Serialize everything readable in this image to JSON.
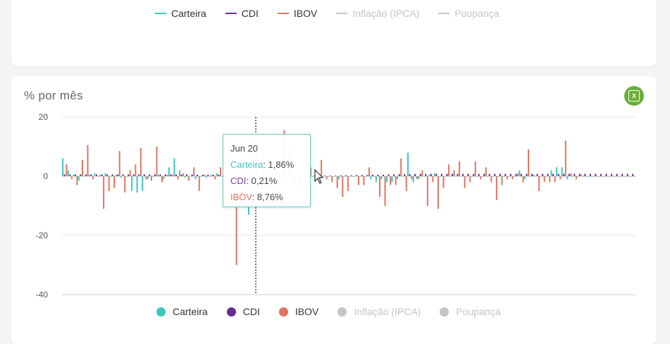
{
  "legend": {
    "items": [
      {
        "label": "Carteira",
        "color": "#3cc6bb",
        "active": true
      },
      {
        "label": "CDI",
        "color": "#6a2c91",
        "active": true
      },
      {
        "label": "IBOV",
        "color": "#e2735e",
        "active": true
      },
      {
        "label": "Inflação (IPCA)",
        "color": "#c4c4c4",
        "active": false
      },
      {
        "label": "Poupança",
        "color": "#c4c4c4",
        "active": false
      }
    ]
  },
  "chart_title": "% por mês",
  "excel_button_icon": "excel-icon",
  "tooltip": {
    "date": "Jun 20",
    "rows": [
      {
        "name": "Carteira",
        "value": ": 1,86%"
      },
      {
        "name": "CDI",
        "value": ": 0,21%"
      },
      {
        "name": "IBOV",
        "value": ": 8,76%"
      }
    ]
  },
  "chart_data": {
    "type": "bar",
    "title": "% por mês",
    "xlabel": "",
    "ylabel": "",
    "y_tick_labels": [
      "20",
      "0",
      "-20",
      "-40"
    ],
    "yticks": [
      20,
      0,
      -20,
      -40
    ],
    "ylim": [
      -40,
      20
    ],
    "grid": "horizontal",
    "legend_position": "bottom",
    "highlighted_point": {
      "label": "Jun 20",
      "index": 36
    },
    "series": [
      {
        "name": "Carteira",
        "color": "#3cc6bb",
        "values": [
          6,
          2,
          0.5,
          -1.5,
          0,
          0.5,
          1,
          0.5,
          1,
          0,
          0.5,
          -0.5,
          0,
          -5,
          -5.5,
          -5,
          -1,
          0,
          0.5,
          -1,
          3,
          6,
          2,
          -0.5,
          0,
          -1,
          0,
          -0.5,
          0.5,
          1,
          0,
          0,
          0,
          0,
          0.5,
          -13,
          1.86,
          -5,
          1,
          0.5,
          0,
          0,
          0,
          0,
          0,
          0,
          0,
          0,
          0,
          0,
          0,
          0,
          -1,
          0,
          0,
          0,
          0,
          0,
          -1,
          -2,
          -1,
          -2,
          -2,
          -1,
          0,
          8,
          -2,
          -1,
          0,
          0.5,
          1,
          0,
          0,
          0,
          0,
          0,
          0,
          0,
          0,
          0,
          0,
          0,
          0,
          0,
          0,
          0,
          2,
          -1,
          0,
          0,
          0,
          0,
          2,
          3,
          3,
          -1,
          0,
          0,
          0,
          0,
          0,
          0,
          0,
          0,
          0,
          0,
          0,
          0
        ]
      },
      {
        "name": "CDI",
        "color": "#6a2c91",
        "values": [
          0.6,
          0.6,
          0.6,
          0.6,
          0.6,
          0.6,
          0.6,
          0.6,
          0.6,
          0.6,
          0.6,
          0.6,
          0.6,
          0.6,
          0.6,
          0.6,
          0.6,
          0.6,
          0.6,
          0.6,
          0.6,
          0.6,
          0.6,
          0.6,
          0.6,
          0.5,
          0.5,
          0.5,
          0.5,
          0.5,
          0.5,
          0.4,
          0.4,
          0.3,
          0.3,
          0.3,
          0.21,
          0.2,
          0.2,
          0.2,
          0.2,
          0.2,
          0.2,
          0.2,
          0.2,
          0.2,
          0.2,
          0.2,
          0.2,
          0.2,
          0.2,
          0.2,
          0.3,
          0.3,
          0.3,
          0.4,
          0.4,
          0.4,
          0.5,
          0.5,
          0.5,
          0.6,
          0.6,
          0.7,
          0.7,
          0.7,
          0.8,
          0.8,
          0.8,
          0.8,
          0.8,
          0.8,
          0.8,
          0.8,
          0.8,
          0.8,
          0.8,
          0.8,
          0.8,
          0.8,
          0.8,
          0.8,
          0.8,
          0.8,
          0.8,
          0.8,
          0.8,
          0.8,
          0.8,
          0.8,
          0.8,
          0.8,
          0.8,
          0.8,
          0.8,
          0.8,
          0.8,
          0.8,
          0.8,
          0.8,
          0.8,
          0.8,
          0.8,
          0.8,
          0.8,
          0.8,
          0.8,
          0.8
        ]
      },
      {
        "name": "IBOV",
        "color": "#e2735e",
        "values": [
          4,
          -1,
          -3,
          5.5,
          10.5,
          -1,
          0,
          -11,
          -5,
          -4,
          8.5,
          -5.5,
          2,
          4,
          9.5,
          -1,
          -1.5,
          10,
          -2,
          0.5,
          0.5,
          -1,
          1,
          -1.5,
          3,
          -5,
          0.5,
          0,
          -1,
          3,
          2,
          0.5,
          -30,
          -8,
          -2,
          -4,
          8.76,
          8,
          -2,
          -4,
          -1,
          15.5,
          9,
          -3,
          -4,
          5.5,
          3,
          -1,
          5.5,
          -1,
          -2,
          -4,
          -7,
          -5,
          0,
          -3,
          -3,
          3,
          0,
          -7,
          -10,
          -3,
          -3,
          6,
          -5,
          -1,
          -1,
          2,
          -10,
          -2,
          -11,
          -4,
          4,
          2,
          5,
          -4,
          -2,
          5,
          -1,
          3,
          -2,
          -8,
          -3,
          -1,
          -1,
          1,
          -2,
          9,
          0.5,
          -5,
          -2,
          -2,
          -2,
          -1,
          12,
          1,
          -1,
          0.5,
          0,
          0,
          0,
          0,
          0,
          0,
          0,
          0,
          0,
          0
        ]
      }
    ]
  }
}
